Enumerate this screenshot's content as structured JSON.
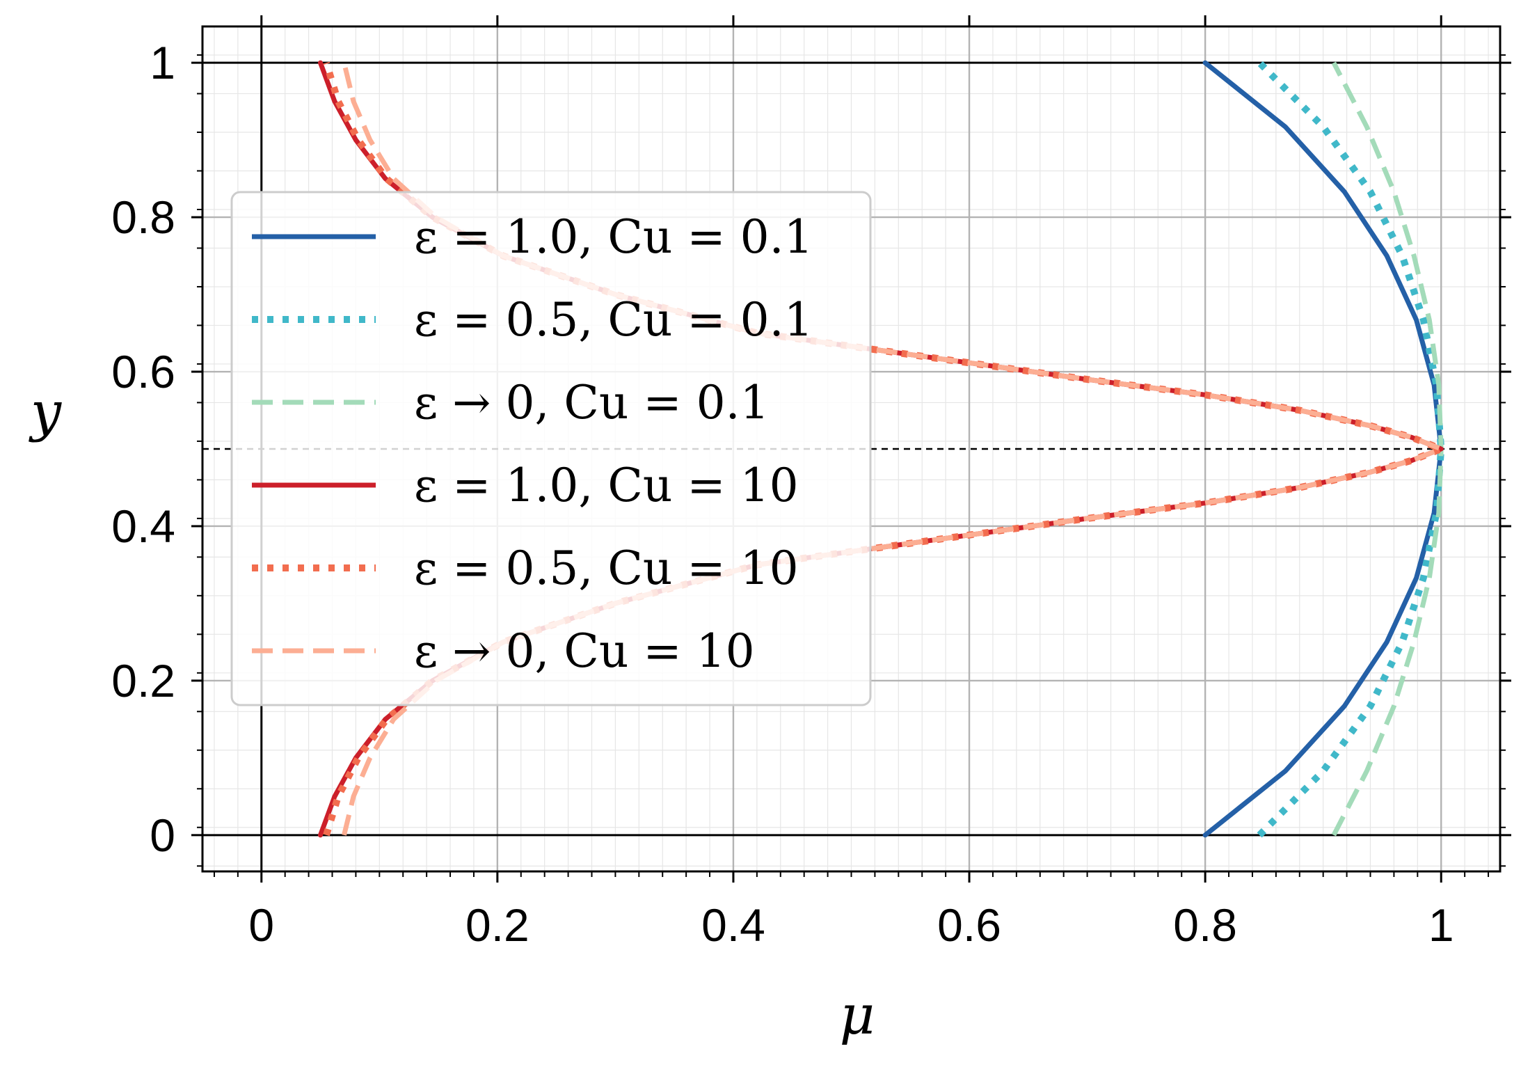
{
  "chart_data": {
    "type": "line",
    "title": "",
    "xlabel": "μ",
    "ylabel": "y",
    "xlim": [
      -0.05,
      1.05
    ],
    "ylim": [
      -0.047,
      1.047
    ],
    "xticks": [
      0,
      0.2,
      0.4,
      0.6,
      0.8,
      1
    ],
    "xtick_labels": [
      "0",
      "0.2",
      "0.4",
      "0.6",
      "0.8",
      "1"
    ],
    "yticks": [
      0,
      0.2,
      0.4,
      0.6,
      0.8,
      1
    ],
    "ytick_labels": [
      "0",
      "0.2",
      "0.4",
      "0.6",
      "0.8",
      "1"
    ],
    "grid": true,
    "minor_grid": true,
    "reference_lines": [
      {
        "orientation": "horizontal",
        "value": 0,
        "style": "solid",
        "color": "#000000"
      },
      {
        "orientation": "horizontal",
        "value": 1,
        "style": "solid",
        "color": "#000000"
      },
      {
        "orientation": "vertical",
        "value": 0,
        "style": "solid",
        "color": "#000000"
      },
      {
        "orientation": "horizontal",
        "value": 0.5,
        "style": "dashed",
        "color": "#000000"
      }
    ],
    "legend_position": "center-left",
    "series": [
      {
        "name": "ε = 1.0, Cu = 0.1",
        "color": "#2460a7",
        "style": "solid",
        "x": [
          0.8,
          0.868,
          0.918,
          0.954,
          0.979,
          0.994,
          1.0,
          0.994,
          0.979,
          0.954,
          0.918,
          0.868,
          0.8
        ],
        "y": [
          0.0,
          0.083,
          0.167,
          0.25,
          0.333,
          0.417,
          0.5,
          0.583,
          0.667,
          0.75,
          0.833,
          0.917,
          1.0
        ]
      },
      {
        "name": "ε = 0.5, Cu = 0.1",
        "color": "#40b8c9",
        "style": "dotted",
        "x": [
          0.846,
          0.9,
          0.94,
          0.967,
          0.985,
          0.996,
          1.0,
          0.996,
          0.985,
          0.967,
          0.94,
          0.9,
          0.846
        ],
        "y": [
          0.0,
          0.083,
          0.167,
          0.25,
          0.333,
          0.417,
          0.5,
          0.583,
          0.667,
          0.75,
          0.833,
          0.917,
          1.0
        ]
      },
      {
        "name": "ε → 0, Cu = 0.1",
        "color": "#a3dbb9",
        "style": "dashed",
        "x": [
          0.909,
          0.937,
          0.96,
          0.977,
          0.99,
          0.998,
          1.0,
          0.998,
          0.99,
          0.977,
          0.96,
          0.937,
          0.909
        ],
        "y": [
          0.0,
          0.083,
          0.167,
          0.25,
          0.333,
          0.417,
          0.5,
          0.583,
          0.667,
          0.75,
          0.833,
          0.917,
          1.0
        ]
      },
      {
        "name": "ε = 1.0, Cu = 10",
        "color": "#cc1f2a",
        "style": "solid",
        "x": [
          0.05,
          0.062,
          0.08,
          0.105,
          0.145,
          0.205,
          0.3,
          0.42,
          0.56,
          0.7,
          0.8,
          0.88,
          0.94,
          0.975,
          1.0,
          0.975,
          0.94,
          0.88,
          0.8,
          0.7,
          0.56,
          0.42,
          0.3,
          0.205,
          0.145,
          0.105,
          0.08,
          0.062,
          0.05
        ],
        "y": [
          0.0,
          0.05,
          0.1,
          0.15,
          0.2,
          0.25,
          0.3,
          0.35,
          0.38,
          0.41,
          0.43,
          0.45,
          0.47,
          0.485,
          0.5,
          0.515,
          0.53,
          0.55,
          0.57,
          0.59,
          0.62,
          0.65,
          0.7,
          0.75,
          0.8,
          0.85,
          0.9,
          0.95,
          1.0
        ]
      },
      {
        "name": "ε = 0.5, Cu = 10",
        "color": "#f26d4f",
        "style": "dotted",
        "x": [
          0.055,
          0.065,
          0.082,
          0.106,
          0.145,
          0.205,
          0.3,
          0.42,
          0.56,
          0.7,
          0.8,
          0.88,
          0.94,
          0.975,
          1.0,
          0.975,
          0.94,
          0.88,
          0.8,
          0.7,
          0.56,
          0.42,
          0.3,
          0.205,
          0.145,
          0.106,
          0.082,
          0.065,
          0.055
        ],
        "y": [
          0.0,
          0.05,
          0.1,
          0.15,
          0.2,
          0.25,
          0.3,
          0.35,
          0.38,
          0.41,
          0.43,
          0.45,
          0.47,
          0.485,
          0.5,
          0.515,
          0.53,
          0.55,
          0.57,
          0.59,
          0.62,
          0.65,
          0.7,
          0.75,
          0.8,
          0.85,
          0.9,
          0.95,
          1.0
        ]
      },
      {
        "name": "ε → 0, Cu = 10",
        "color": "#fcae93",
        "style": "dashed",
        "x": [
          0.07,
          0.078,
          0.092,
          0.112,
          0.148,
          0.205,
          0.3,
          0.42,
          0.56,
          0.7,
          0.8,
          0.88,
          0.94,
          0.975,
          1.0,
          0.975,
          0.94,
          0.88,
          0.8,
          0.7,
          0.56,
          0.42,
          0.3,
          0.205,
          0.148,
          0.112,
          0.092,
          0.078,
          0.07
        ],
        "y": [
          0.0,
          0.05,
          0.1,
          0.15,
          0.2,
          0.25,
          0.3,
          0.35,
          0.38,
          0.41,
          0.43,
          0.45,
          0.47,
          0.485,
          0.5,
          0.515,
          0.53,
          0.55,
          0.57,
          0.59,
          0.62,
          0.65,
          0.7,
          0.75,
          0.8,
          0.85,
          0.9,
          0.95,
          1.0
        ]
      }
    ]
  }
}
